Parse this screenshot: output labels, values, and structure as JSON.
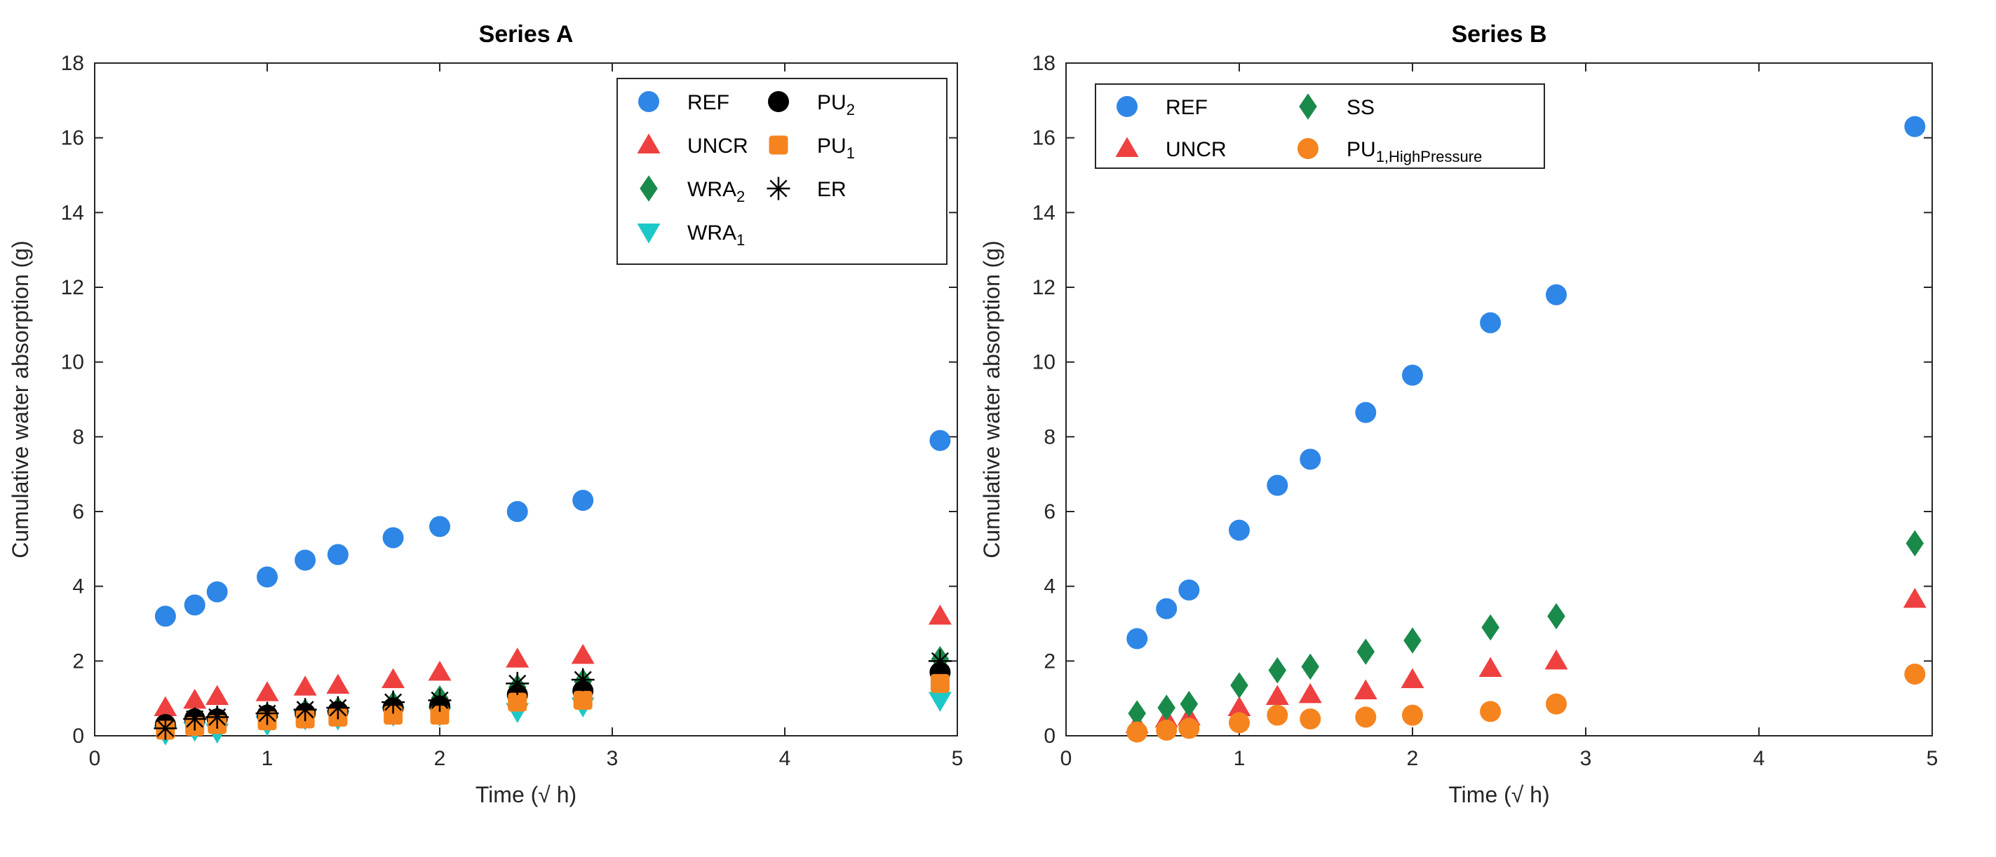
{
  "chart_data": [
    {
      "type": "scatter",
      "title": "Series A",
      "xlabel": "Time (√ h)",
      "ylabel": "Cumulative water absorption (g)",
      "xlim": [
        0,
        5
      ],
      "ylim": [
        0,
        18
      ],
      "xticks": [
        0,
        1,
        2,
        3,
        4,
        5
      ],
      "yticks": [
        0,
        2,
        4,
        6,
        8,
        10,
        12,
        14,
        16,
        18
      ],
      "legend_position": "top-right",
      "legend_columns": 2,
      "series": [
        {
          "name": "REF",
          "label_main": "REF",
          "label_sub": "",
          "marker": "circle",
          "color": "#2e86e6",
          "x": [
            0.41,
            0.58,
            0.71,
            1.0,
            1.22,
            1.41,
            1.73,
            2.0,
            2.45,
            2.83,
            4.9
          ],
          "y": [
            3.2,
            3.5,
            3.85,
            4.25,
            4.7,
            4.85,
            5.3,
            5.6,
            6.0,
            6.3,
            7.9
          ]
        },
        {
          "name": "UNCR",
          "label_main": "UNCR",
          "label_sub": "",
          "marker": "triangle-up",
          "color": "#ef4040",
          "x": [
            0.41,
            0.58,
            0.71,
            1.0,
            1.22,
            1.41,
            1.73,
            2.0,
            2.45,
            2.83,
            4.9
          ],
          "y": [
            0.75,
            0.95,
            1.05,
            1.15,
            1.3,
            1.35,
            1.5,
            1.7,
            2.05,
            2.15,
            3.2
          ]
        },
        {
          "name": "WRA2",
          "label_main": "WRA",
          "label_sub": "2",
          "marker": "diamond",
          "color": "#1a8a4a",
          "x": [
            0.41,
            0.58,
            0.71,
            1.0,
            1.22,
            1.41,
            1.73,
            2.0,
            2.45,
            2.83,
            4.9
          ],
          "y": [
            0.25,
            0.4,
            0.45,
            0.55,
            0.65,
            0.7,
            0.85,
            1.0,
            1.3,
            1.45,
            2.05
          ]
        },
        {
          "name": "WRA1",
          "label_main": "WRA",
          "label_sub": "1",
          "marker": "triangle-down",
          "color": "#1ec8c8",
          "x": [
            0.41,
            0.58,
            0.71,
            1.0,
            1.22,
            1.41,
            1.73,
            2.0,
            2.45,
            2.83,
            4.9
          ],
          "y": [
            0.05,
            0.15,
            0.1,
            0.3,
            0.45,
            0.45,
            0.55,
            0.55,
            0.65,
            0.8,
            0.95
          ]
        },
        {
          "name": "PU2",
          "label_main": "PU",
          "label_sub": "2",
          "marker": "circle",
          "color": "#000000",
          "x": [
            0.41,
            0.58,
            0.71,
            1.0,
            1.22,
            1.41,
            1.73,
            2.0,
            2.45,
            2.83,
            4.9
          ],
          "y": [
            0.3,
            0.45,
            0.45,
            0.55,
            0.6,
            0.65,
            0.75,
            0.8,
            1.1,
            1.2,
            1.7
          ]
        },
        {
          "name": "PU1",
          "label_main": "PU",
          "label_sub": "1",
          "marker": "square",
          "color": "#f5841f",
          "x": [
            0.41,
            0.58,
            0.71,
            1.0,
            1.22,
            1.41,
            1.73,
            2.0,
            2.45,
            2.83,
            4.9
          ],
          "y": [
            0.15,
            0.25,
            0.3,
            0.4,
            0.45,
            0.5,
            0.55,
            0.55,
            0.9,
            0.95,
            1.4
          ]
        },
        {
          "name": "ER",
          "label_main": "ER",
          "label_sub": "",
          "marker": "asterisk",
          "color": "#000000",
          "x": [
            0.41,
            0.58,
            0.71,
            1.0,
            1.22,
            1.41,
            1.73,
            2.0,
            2.45,
            2.83,
            4.9
          ],
          "y": [
            0.2,
            0.45,
            0.5,
            0.6,
            0.7,
            0.75,
            0.9,
            0.95,
            1.4,
            1.5,
            2.0
          ]
        }
      ]
    },
    {
      "type": "scatter",
      "title": "Series B",
      "xlabel": "Time (√ h)",
      "ylabel": "Cumulative water absorption (g)",
      "xlim": [
        0,
        5
      ],
      "ylim": [
        0,
        18
      ],
      "xticks": [
        0,
        1,
        2,
        3,
        4,
        5
      ],
      "yticks": [
        0,
        2,
        4,
        6,
        8,
        10,
        12,
        14,
        16,
        18
      ],
      "legend_position": "top-left",
      "legend_columns": 2,
      "series": [
        {
          "name": "REF",
          "label_main": "REF",
          "label_sub": "",
          "marker": "circle",
          "color": "#2e86e6",
          "x": [
            0.41,
            0.58,
            0.71,
            1.0,
            1.22,
            1.41,
            1.73,
            2.0,
            2.45,
            2.83,
            4.9
          ],
          "y": [
            2.6,
            3.4,
            3.9,
            5.5,
            6.7,
            7.4,
            8.65,
            9.65,
            11.05,
            11.8,
            16.3
          ]
        },
        {
          "name": "UNCR",
          "label_main": "UNCR",
          "label_sub": "",
          "marker": "triangle-up",
          "color": "#ef4040",
          "x": [
            0.41,
            0.58,
            0.71,
            1.0,
            1.22,
            1.41,
            1.73,
            2.0,
            2.45,
            2.83,
            4.9
          ],
          "y": [
            0.3,
            0.45,
            0.5,
            0.75,
            1.05,
            1.1,
            1.2,
            1.5,
            1.8,
            2.0,
            3.65
          ]
        },
        {
          "name": "SS",
          "label_main": "SS",
          "label_sub": "",
          "marker": "diamond",
          "color": "#1a8a4a",
          "x": [
            0.41,
            0.58,
            0.71,
            1.0,
            1.22,
            1.41,
            1.73,
            2.0,
            2.45,
            2.83,
            4.9
          ],
          "y": [
            0.6,
            0.75,
            0.85,
            1.35,
            1.75,
            1.85,
            2.25,
            2.55,
            2.9,
            3.2,
            5.15
          ]
        },
        {
          "name": "PU1,HighPressure",
          "label_main": "PU",
          "label_sub": "1,HighPressure",
          "marker": "circle",
          "color": "#f5841f",
          "x": [
            0.41,
            0.58,
            0.71,
            1.0,
            1.22,
            1.41,
            1.73,
            2.0,
            2.45,
            2.83,
            4.9
          ],
          "y": [
            0.1,
            0.15,
            0.2,
            0.35,
            0.55,
            0.45,
            0.5,
            0.55,
            0.65,
            0.85,
            1.65
          ]
        }
      ]
    }
  ]
}
